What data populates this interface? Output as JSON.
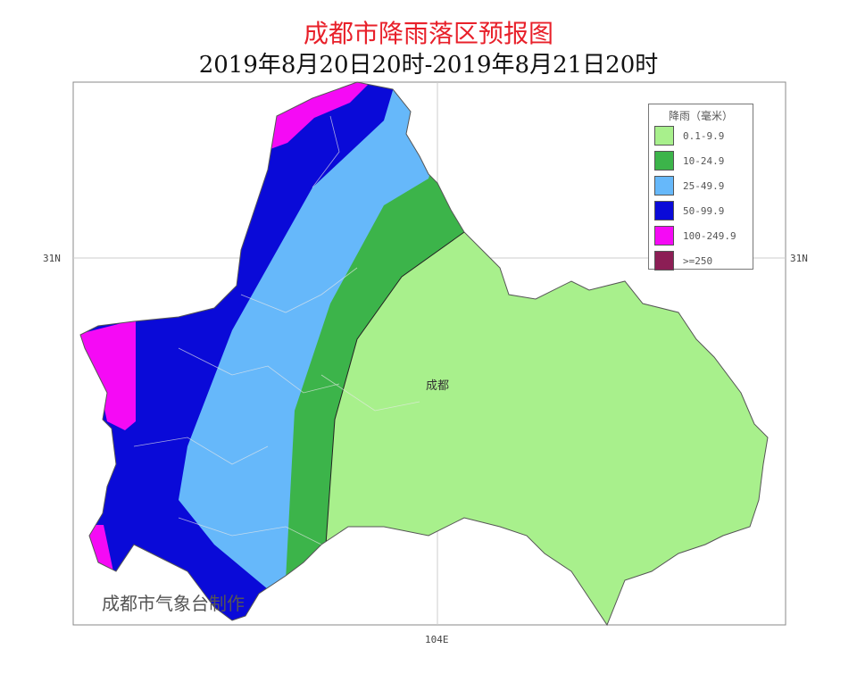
{
  "title": "成都市降雨落区预报图",
  "subtitle": "2019年8月20日20时-2019年8月21日20时",
  "axes": {
    "lat_label_left": "31N",
    "lat_label_right": "31N",
    "lon_label": "104E"
  },
  "city_label": "成都",
  "credit": "成都市气象台制作",
  "legend": {
    "title": "降雨（毫米）",
    "items": [
      {
        "label": "0.1-9.9",
        "color": "#a8f08c"
      },
      {
        "label": "10-24.9",
        "color": "#3cb44a"
      },
      {
        "label": "25-49.9",
        "color": "#66b8fa"
      },
      {
        "label": "50-99.9",
        "color": "#0a0ad8"
      },
      {
        "label": "100-249.9",
        "color": "#f50af5"
      },
      {
        "label": ">=250",
        "color": "#8c1e55"
      }
    ]
  }
}
